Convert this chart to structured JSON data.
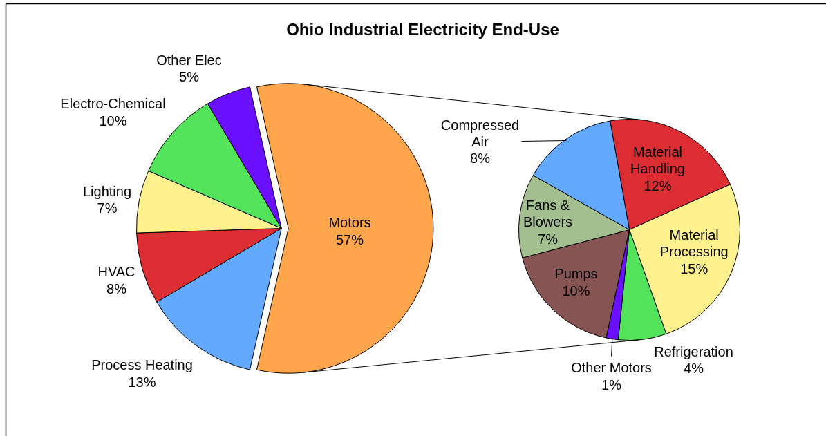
{
  "chart_data": [
    {
      "type": "pie",
      "title": "Ohio Industrial Electricity End-Use",
      "categories": [
        "Motors",
        "Process Heating",
        "HVAC",
        "Lighting",
        "Electro-Chemical",
        "Other Elec"
      ],
      "values": [
        57,
        13,
        8,
        7,
        10,
        5
      ],
      "value_labels": [
        "57%",
        "13%",
        "8%",
        "7%",
        "10%",
        "5%"
      ],
      "colors": [
        "#ffa64d",
        "#63a9ff",
        "#dc2d32",
        "#fff28e",
        "#52e35a",
        "#6a10ff"
      ]
    },
    {
      "type": "pie",
      "categories": [
        "Material Handling",
        "Material Processing",
        "Refrigeration",
        "Other Motors",
        "Pumps",
        "Fans & Blowers",
        "Compressed Air"
      ],
      "values": [
        12,
        15,
        4,
        1,
        10,
        7,
        8
      ],
      "value_labels": [
        "12%",
        "15%",
        "4%",
        "1%",
        "10%",
        "7%",
        "8%"
      ],
      "colors": [
        "#dc2d32",
        "#fff28e",
        "#52e35a",
        "#6a10ff",
        "#875454",
        "#a3bf8f",
        "#63a9ff"
      ]
    }
  ]
}
